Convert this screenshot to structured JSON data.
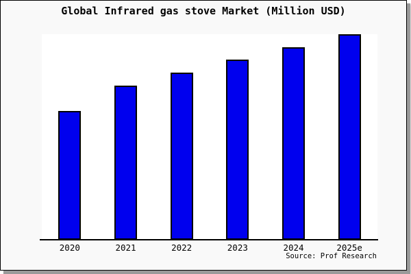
{
  "chart_data": {
    "type": "bar",
    "title": "Global Infrared gas stove Market (Million USD)",
    "categories": [
      "2020",
      "2021",
      "2022",
      "2023",
      "2024",
      "2025e"
    ],
    "values": [
      62.7,
      75.0,
      81.3,
      87.7,
      93.7,
      100.0
    ],
    "values_note": "relative heights, % of tallest bar (chart shows no y-axis scale, labels or gridlines)",
    "xlabel": "",
    "ylabel": "",
    "ylim": [
      0,
      100
    ],
    "grid": false,
    "legend": "none",
    "source_note": "Source: Prof Research",
    "colors": {
      "bar_fill": "#0000ee",
      "bar_edge": "#000000",
      "plot_bg": "#ffffff",
      "figure_bg": "#f9f9f9",
      "frame": "#000000",
      "shadow": "#9a9a9a",
      "title_text": "#000000"
    }
  }
}
